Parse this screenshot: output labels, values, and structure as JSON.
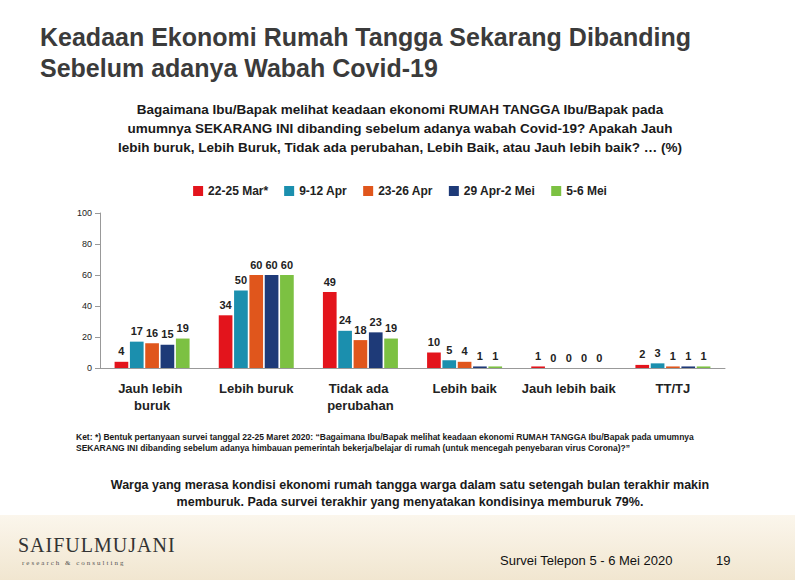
{
  "chart_data": {
    "type": "bar",
    "title": "Keadaan Ekonomi Rumah Tangga Sekarang Dibanding Sebelum adanya Wabah Covid-19",
    "subtitle": "Bagaimana Ibu/Bapak melihat keadaan ekonomi RUMAH TANGGA Ibu/Bapak pada umumnya SEKARANG INI dibanding sebelum adanya wabah Covid-19? Apakah Jauh lebih buruk, Lebih Buruk, Tidak ada perubahan, Lebih Baik, atau Jauh lebih baik? … (%)",
    "annotations": [
      "Ket: *) Bentuk pertanyaan survei tanggal 22-25 Maret 2020: “Bagaimana Ibu/Bapak melihat keadaan ekonomi RUMAH TANGGA Ibu/Bapak pada umumnya SEKARANG INI dibanding sebelum adanya himbauan pemerintah bekerja/belajar di rumah (untuk mencegah penyebaran virus Corona)?”",
      "Warga yang merasa kondisi ekonomi rumah tangga warga dalam satu setengah bulan terakhir makin memburuk. Pada survei terakhir yang menyatakan kondisinya memburuk 79%.",
      "SAIFULMUJANI",
      "research & consulting",
      "Survei Telepon 5 - 6 Mei 2020",
      "19"
    ],
    "categories": [
      "Jauh lebih buruk",
      "Lebih buruk",
      "Tidak ada perubahan",
      "Lebih baik",
      "Jauh lebih baik",
      "TT/TJ"
    ],
    "series": [
      {
        "name": "22-25 Mar*",
        "color": "#e3141c",
        "values": [
          4,
          34,
          49,
          10,
          1,
          2
        ]
      },
      {
        "name": "9-12 Apr",
        "color": "#1b8fae",
        "values": [
          17,
          50,
          24,
          5,
          0,
          3
        ]
      },
      {
        "name": "23-26 Apr",
        "color": "#e0561c",
        "values": [
          16,
          60,
          18,
          4,
          0,
          1
        ]
      },
      {
        "name": "29 Apr-2 Mei",
        "color": "#1e3a78",
        "values": [
          15,
          60,
          23,
          1,
          0,
          1
        ]
      },
      {
        "name": "5-6 Mei",
        "color": "#7cc142",
        "values": [
          19,
          60,
          19,
          1,
          0,
          1
        ]
      }
    ],
    "ylim": [
      0,
      100
    ],
    "yticks": [
      0,
      20,
      40,
      60,
      80,
      100
    ],
    "grid": false,
    "legend": "top",
    "data_labels": true
  }
}
